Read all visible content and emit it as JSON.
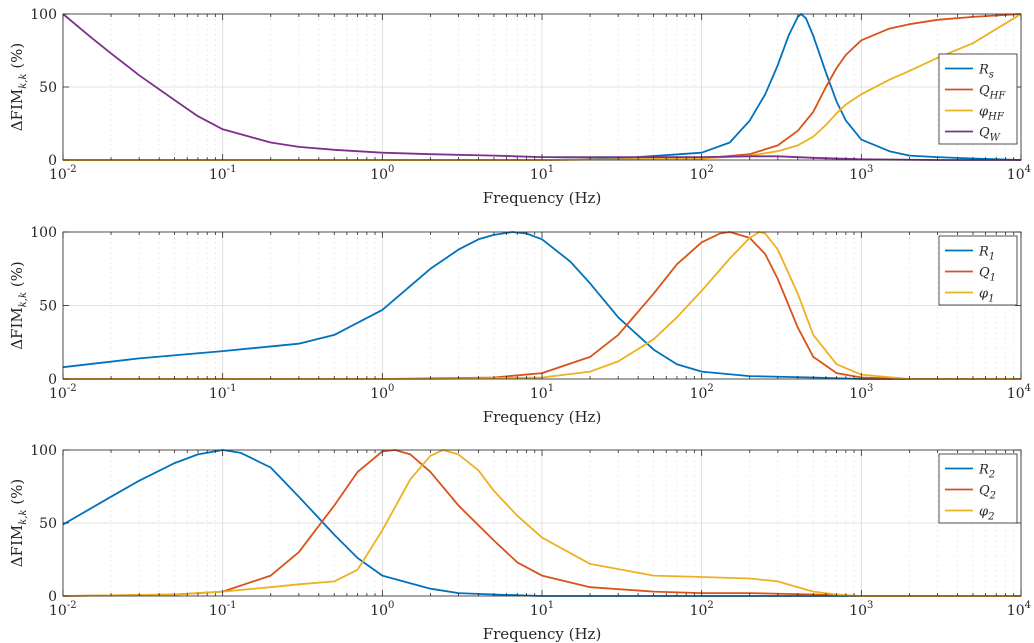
{
  "chart_data": [
    {
      "type": "line",
      "xscale": "log",
      "xlim": [
        0.01,
        10000
      ],
      "ylim": [
        0,
        100
      ],
      "xticks": [
        0.01,
        0.1,
        1,
        10,
        100,
        1000,
        10000
      ],
      "xtick_mantissa": "10",
      "xtick_exponents": [
        "-2",
        "-1",
        "0",
        "1",
        "2",
        "3",
        "4"
      ],
      "yticks": [
        "0",
        "50",
        "100"
      ],
      "xlabel": "Frequency (Hz)",
      "ylabel": "ΔFIM",
      "ylabel_sub": "k,k",
      "ylabel_unit": "(%)",
      "grid": true,
      "legend_position": "right",
      "series": [
        {
          "name": "R",
          "name_sub": "s",
          "color": "#0072BD",
          "x": [
            0.01,
            1,
            10,
            30,
            100,
            150,
            200,
            250,
            300,
            350,
            400,
            420,
            450,
            500,
            600,
            700,
            800,
            1000,
            1500,
            2000,
            3000,
            5000,
            10000
          ],
          "y": [
            0,
            0,
            0,
            1,
            5,
            12,
            27,
            45,
            65,
            85,
            98,
            100,
            97,
            85,
            60,
            40,
            27,
            14,
            6,
            3,
            2,
            1,
            0
          ]
        },
        {
          "name": "Q",
          "name_sub": "HF",
          "color": "#D95319",
          "x": [
            0.01,
            1,
            10,
            100,
            200,
            300,
            400,
            500,
            600,
            700,
            800,
            1000,
            1500,
            2000,
            3000,
            5000,
            10000
          ],
          "y": [
            0,
            0,
            0,
            1,
            4,
            10,
            20,
            33,
            50,
            63,
            72,
            82,
            90,
            93,
            96,
            98,
            100
          ]
        },
        {
          "name": "φ",
          "name_sub": "HF",
          "color": "#EDB120",
          "x": [
            0.01,
            1,
            10,
            100,
            200,
            300,
            400,
            500,
            600,
            700,
            800,
            1000,
            1500,
            2000,
            3000,
            5000,
            10000
          ],
          "y": [
            0,
            0,
            0,
            1,
            3,
            6,
            10,
            16,
            24,
            32,
            38,
            45,
            55,
            61,
            70,
            80,
            100
          ]
        },
        {
          "name": "Q",
          "name_sub": "W",
          "color": "#7E2F8E",
          "x": [
            0.01,
            0.015,
            0.02,
            0.03,
            0.05,
            0.07,
            0.1,
            0.2,
            0.3,
            0.5,
            1,
            2,
            5,
            10,
            30,
            100,
            200,
            300,
            500,
            1000,
            3000,
            10000
          ],
          "y": [
            100,
            84,
            73,
            58,
            41,
            30,
            21,
            12,
            9,
            7,
            5,
            4,
            3,
            2,
            2,
            2,
            2.5,
            2.5,
            1.5,
            0.5,
            0,
            0
          ]
        }
      ]
    },
    {
      "type": "line",
      "xscale": "log",
      "xlim": [
        0.01,
        10000
      ],
      "ylim": [
        0,
        100
      ],
      "xticks": [
        0.01,
        0.1,
        1,
        10,
        100,
        1000,
        10000
      ],
      "xtick_mantissa": "10",
      "xtick_exponents": [
        "-2",
        "-1",
        "0",
        "1",
        "2",
        "3",
        "4"
      ],
      "yticks": [
        "0",
        "50",
        "100"
      ],
      "xlabel": "Frequency (Hz)",
      "ylabel": "ΔFIM",
      "ylabel_sub": "k,k",
      "ylabel_unit": "(%)",
      "grid": true,
      "legend_position": "top-right",
      "series": [
        {
          "name": "R",
          "name_sub": "1",
          "color": "#0072BD",
          "x": [
            0.01,
            0.03,
            0.1,
            0.3,
            0.5,
            1,
            2,
            3,
            4,
            5,
            6.5,
            8,
            10,
            15,
            20,
            30,
            50,
            70,
            100,
            200,
            500,
            1000,
            10000
          ],
          "y": [
            8,
            14,
            19,
            24,
            30,
            47,
            75,
            88,
            95,
            98,
            100,
            99,
            95,
            80,
            65,
            42,
            20,
            10,
            5,
            2,
            1,
            0,
            0
          ]
        },
        {
          "name": "Q",
          "name_sub": "1",
          "color": "#D95319",
          "x": [
            0.01,
            1,
            5,
            10,
            20,
            30,
            50,
            70,
            100,
            130,
            150,
            200,
            250,
            300,
            400,
            500,
            700,
            1000,
            2000,
            10000
          ],
          "y": [
            0,
            0,
            1,
            4,
            15,
            30,
            58,
            78,
            93,
            99,
            100,
            96,
            85,
            68,
            35,
            15,
            4,
            1,
            0,
            0
          ]
        },
        {
          "name": "φ",
          "name_sub": "1",
          "color": "#EDB120",
          "x": [
            0.01,
            2,
            10,
            20,
            30,
            50,
            70,
            100,
            150,
            200,
            230,
            250,
            300,
            400,
            500,
            700,
            1000,
            2000,
            10000
          ],
          "y": [
            0,
            0,
            1,
            5,
            12,
            27,
            42,
            60,
            82,
            96,
            100,
            99,
            88,
            58,
            30,
            10,
            3,
            0,
            0
          ]
        }
      ]
    },
    {
      "type": "line",
      "xscale": "log",
      "xlim": [
        0.01,
        10000
      ],
      "ylim": [
        0,
        100
      ],
      "xticks": [
        0.01,
        0.1,
        1,
        10,
        100,
        1000,
        10000
      ],
      "xtick_mantissa": "10",
      "xtick_exponents": [
        "-2",
        "-1",
        "0",
        "1",
        "2",
        "3",
        "4"
      ],
      "yticks": [
        "0",
        "50",
        "100"
      ],
      "xlabel": "Frequency (Hz)",
      "ylabel": "ΔFIM",
      "ylabel_sub": "k,k",
      "ylabel_unit": "(%)",
      "grid": true,
      "legend_position": "top-right",
      "series": [
        {
          "name": "R",
          "name_sub": "2",
          "color": "#0072BD",
          "x": [
            0.01,
            0.02,
            0.03,
            0.05,
            0.07,
            0.1,
            0.13,
            0.2,
            0.3,
            0.5,
            0.7,
            1,
            2,
            3,
            5,
            10,
            30,
            10000
          ],
          "y": [
            49,
            68,
            79,
            91,
            97,
            100,
            98,
            88,
            68,
            42,
            26,
            14,
            5,
            2,
            1,
            0,
            0,
            0
          ]
        },
        {
          "name": "Q",
          "name_sub": "2",
          "color": "#D95319",
          "x": [
            0.01,
            0.05,
            0.1,
            0.2,
            0.3,
            0.5,
            0.7,
            1,
            1.2,
            1.5,
            2,
            3,
            5,
            7,
            10,
            20,
            50,
            100,
            200,
            500,
            1000,
            10000
          ],
          "y": [
            0,
            1,
            3,
            14,
            30,
            62,
            85,
            99,
            100,
            97,
            85,
            62,
            38,
            23,
            14,
            6,
            3,
            2,
            2,
            1,
            0,
            0
          ]
        },
        {
          "name": "φ",
          "name_sub": "2",
          "color": "#EDB120",
          "x": [
            0.01,
            0.05,
            0.1,
            0.2,
            0.3,
            0.5,
            0.7,
            1,
            1.5,
            2,
            2.4,
            3,
            4,
            5,
            7,
            10,
            20,
            50,
            100,
            200,
            300,
            400,
            500,
            700,
            1000,
            3000,
            10000
          ],
          "y": [
            0,
            1,
            3,
            6,
            8,
            10,
            18,
            45,
            80,
            96,
            100,
            97,
            86,
            72,
            55,
            40,
            22,
            14,
            13,
            12,
            10,
            6,
            3,
            1,
            0,
            0,
            0
          ]
        }
      ]
    }
  ]
}
